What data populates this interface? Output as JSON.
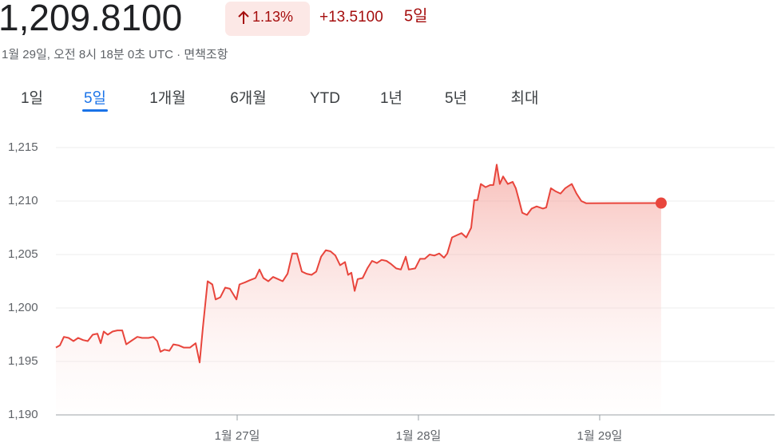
{
  "header": {
    "price": "1,209.8100",
    "change_percent": "1.13%",
    "change": "+13.5100",
    "period": "5일",
    "subtitle": "1월 29일, 오전 8시 18분 0초 UTC · 면책조항"
  },
  "tabs": [
    "1일",
    "5일",
    "1개월",
    "6개월",
    "YTD",
    "1년",
    "5년",
    "최대"
  ],
  "selected_tab": 1,
  "chart_data": {
    "type": "line",
    "color": "#e8453c",
    "grid": true,
    "x": [
      26.0,
      26.022,
      26.044,
      26.07,
      26.097,
      26.123,
      26.15,
      26.176,
      26.203,
      26.229,
      26.247,
      26.264,
      26.286,
      26.313,
      26.339,
      26.366,
      26.388,
      26.414,
      26.449,
      26.476,
      26.511,
      26.537,
      26.559,
      26.577,
      26.599,
      26.626,
      26.648,
      26.678,
      26.705,
      26.74,
      26.771,
      26.793,
      26.811,
      26.837,
      26.863,
      26.881,
      26.907,
      26.934,
      26.96,
      26.996,
      27.013,
      27.044,
      27.07,
      27.101,
      27.123,
      27.145,
      27.172,
      27.198,
      27.225,
      27.251,
      27.278,
      27.304,
      27.33,
      27.357,
      27.383,
      27.41,
      27.436,
      27.463,
      27.489,
      27.515,
      27.542,
      27.568,
      27.595,
      27.612,
      27.63,
      27.648,
      27.665,
      27.692,
      27.718,
      27.744,
      27.771,
      27.797,
      27.824,
      27.85,
      27.877,
      27.903,
      27.93,
      27.947,
      27.982,
      28.009,
      28.035,
      28.062,
      28.088,
      28.115,
      28.141,
      28.159,
      28.185,
      28.211,
      28.238,
      28.264,
      28.291,
      28.308,
      28.326,
      28.344,
      28.37,
      28.396,
      28.414,
      28.432,
      28.449,
      28.467,
      28.493,
      28.52,
      28.537,
      28.555,
      28.573,
      28.599,
      28.625,
      28.652,
      28.687,
      28.705,
      28.731,
      28.758,
      28.784,
      28.81,
      28.828,
      28.846,
      28.872,
      28.899,
      28.925,
      29.339
    ],
    "values": [
      1196.3,
      1196.5,
      1197.3,
      1197.2,
      1196.9,
      1197.2,
      1197.0,
      1196.9,
      1197.5,
      1197.6,
      1196.7,
      1197.8,
      1197.5,
      1197.8,
      1197.9,
      1197.9,
      1196.6,
      1196.9,
      1197.3,
      1197.2,
      1197.2,
      1197.3,
      1196.9,
      1195.9,
      1196.1,
      1196.0,
      1196.6,
      1196.5,
      1196.3,
      1196.3,
      1196.7,
      1194.9,
      1198.2,
      1202.5,
      1202.2,
      1200.8,
      1201.0,
      1201.9,
      1201.8,
      1200.8,
      1202.2,
      1202.4,
      1202.6,
      1202.8,
      1203.6,
      1202.8,
      1202.5,
      1202.9,
      1202.7,
      1202.5,
      1203.2,
      1205.1,
      1205.1,
      1203.4,
      1203.2,
      1203.1,
      1203.4,
      1204.8,
      1205.4,
      1205.3,
      1204.9,
      1204.0,
      1204.3,
      1203.1,
      1203.3,
      1201.6,
      1202.7,
      1202.8,
      1203.7,
      1204.4,
      1204.2,
      1204.5,
      1204.4,
      1204.1,
      1203.7,
      1203.6,
      1204.8,
      1203.6,
      1203.7,
      1204.6,
      1204.6,
      1205.0,
      1204.9,
      1205.1,
      1204.7,
      1205.1,
      1206.6,
      1206.8,
      1207.0,
      1206.6,
      1207.5,
      1210.1,
      1210.1,
      1211.6,
      1211.3,
      1211.5,
      1211.5,
      1213.4,
      1211.6,
      1212.3,
      1211.6,
      1211.8,
      1211.2,
      1210.1,
      1208.9,
      1208.7,
      1209.3,
      1209.5,
      1209.3,
      1209.4,
      1211.2,
      1210.9,
      1210.7,
      1211.2,
      1211.4,
      1211.6,
      1210.7,
      1210.0,
      1209.8,
      1209.81
    ],
    "xlim": [
      26,
      29.965
    ],
    "xticks": [
      {
        "value": 27,
        "label": "1월 27일"
      },
      {
        "value": 28,
        "label": "1월 28일"
      },
      {
        "value": 29,
        "label": "1월 29일"
      }
    ],
    "ylim": [
      1190,
      1215
    ],
    "yticks": [
      {
        "value": 1190,
        "label": "1,190"
      },
      {
        "value": 1195,
        "label": "1,195"
      },
      {
        "value": 1200,
        "label": "1,200"
      },
      {
        "value": 1205,
        "label": "1,205"
      },
      {
        "value": 1210,
        "label": "1,210"
      },
      {
        "value": 1215,
        "label": "1,215"
      }
    ]
  }
}
